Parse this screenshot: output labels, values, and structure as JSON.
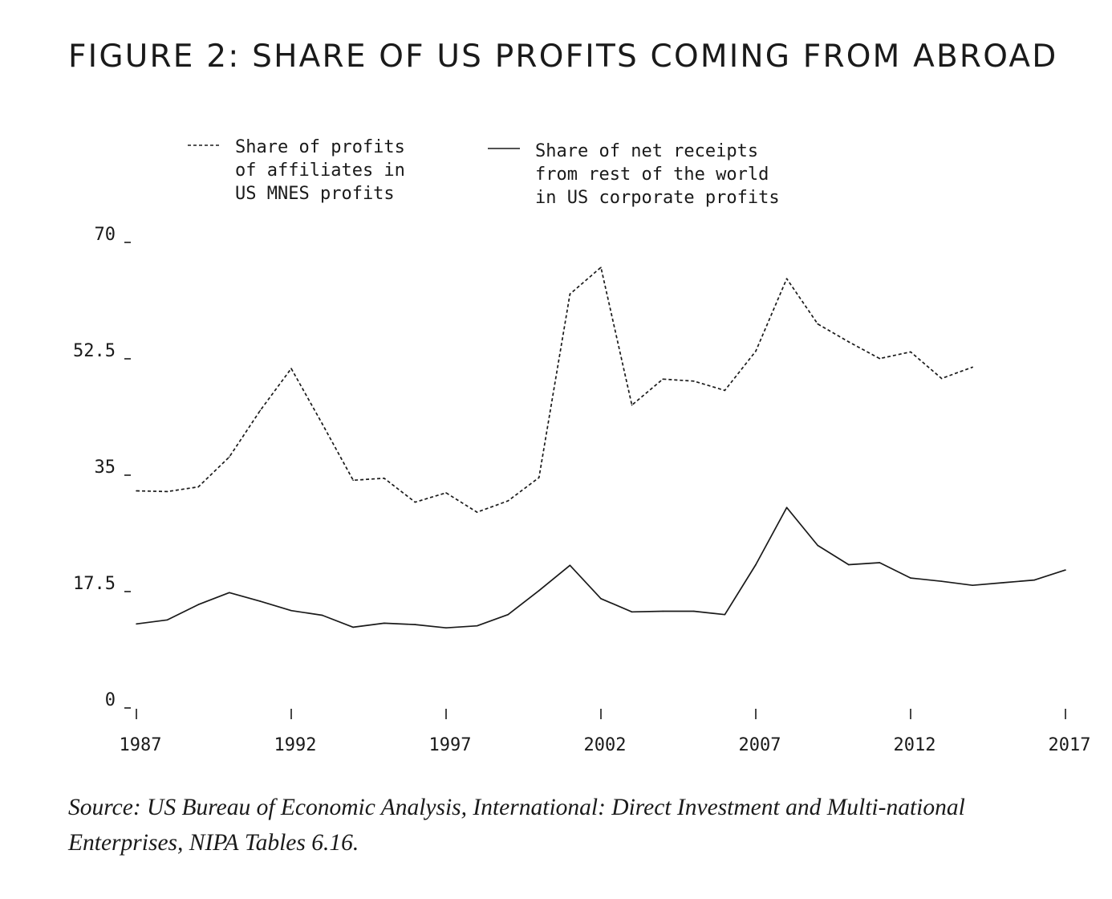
{
  "title": "FIGURE 2: SHARE OF US PROFITS COMING FROM ABROAD",
  "source": {
    "prefix": "Source: US Bureau of Economic Analysis, International: Direct Investment and Multi-national Enterprises, ",
    "nipa": "NIPA",
    "suffix": " Tables 6.16."
  },
  "chart_data": {
    "type": "line",
    "legend": [
      {
        "style": "dashed",
        "lines": [
          "Share of profits",
          "of affiliates in",
          "US MNES profits"
        ]
      },
      {
        "style": "solid",
        "lines": [
          "Share of net receipts",
          "from rest of the world",
          "in US corporate profits"
        ]
      }
    ],
    "x_ticks": [
      1987,
      1992,
      1997,
      2002,
      2007,
      2012,
      2017
    ],
    "y_ticks": [
      {
        "value": 0,
        "label": "0"
      },
      {
        "value": 17.5,
        "label": "17.5"
      },
      {
        "value": 35,
        "label": "35"
      },
      {
        "value": 52.5,
        "label": "52.5"
      },
      {
        "value": 70,
        "label": "70"
      }
    ],
    "xlim": [
      1987,
      2017
    ],
    "ylim": [
      0,
      70
    ],
    "grid": false,
    "series": [
      {
        "style": "dashed",
        "x": [
          1987,
          1988,
          1989,
          1990,
          1991,
          1992,
          1993,
          1994,
          1995,
          1996,
          1997,
          1998,
          1999,
          2000,
          2001,
          2002,
          2003,
          2004,
          2005,
          2006,
          2007,
          2008,
          2009,
          2010,
          2011,
          2012,
          2013,
          2014
        ],
        "values": [
          32.4,
          32.3,
          33.0,
          37.5,
          44.5,
          50.8,
          42.5,
          34.0,
          34.3,
          30.7,
          32.1,
          29.2,
          30.9,
          34.4,
          62.0,
          66.0,
          45.3,
          49.2,
          48.9,
          47.5,
          53.4,
          64.3,
          57.5,
          54.8,
          52.3,
          53.3,
          49.3,
          51.0
        ]
      },
      {
        "style": "solid",
        "x": [
          1987,
          1988,
          1989,
          1990,
          1991,
          1992,
          1993,
          1994,
          1995,
          1996,
          1997,
          1998,
          1999,
          2000,
          2001,
          2002,
          2003,
          2004,
          2005,
          2006,
          2007,
          2008,
          2009,
          2010,
          2011,
          2012,
          2013,
          2014,
          2015,
          2016,
          2017
        ],
        "values": [
          12.4,
          13.0,
          15.3,
          17.1,
          15.8,
          14.4,
          13.7,
          11.9,
          12.5,
          12.3,
          11.8,
          12.1,
          13.8,
          17.4,
          21.2,
          16.2,
          14.2,
          14.3,
          14.3,
          13.8,
          21.3,
          29.9,
          24.2,
          21.3,
          21.6,
          19.3,
          18.8,
          18.2,
          18.6,
          19.0,
          20.5
        ]
      }
    ]
  }
}
